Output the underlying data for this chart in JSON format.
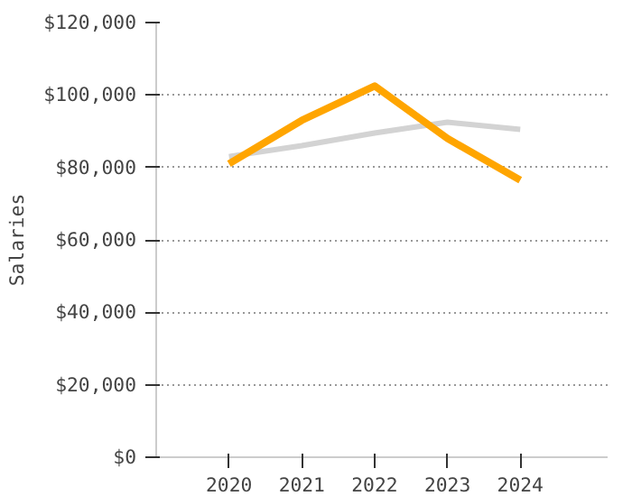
{
  "chart_data": {
    "type": "line",
    "ylabel": "Salaries",
    "x": [
      2020,
      2021,
      2022,
      2023,
      2024
    ],
    "series": [
      {
        "color": "#d3d3d3",
        "values": [
          83000,
          86000,
          89500,
          92500,
          90500
        ]
      },
      {
        "color": "#ffa500",
        "values": [
          81000,
          93000,
          102500,
          88000,
          76500
        ]
      }
    ],
    "xlim": [
      2019,
      2025.2
    ],
    "xticks": [
      2020,
      2021,
      2022,
      2023,
      2024
    ],
    "ylim": [
      0,
      120000
    ],
    "yticks": [
      {
        "value": 0,
        "label": "$0"
      },
      {
        "value": 20000,
        "label": "$20,000"
      },
      {
        "value": 40000,
        "label": "$40,000"
      },
      {
        "value": 60000,
        "label": "$60,000"
      },
      {
        "value": 80000,
        "label": "$80,000"
      },
      {
        "value": 100000,
        "label": "$100,000"
      },
      {
        "value": 120000,
        "label": "$120,000"
      }
    ],
    "grid": "y"
  }
}
